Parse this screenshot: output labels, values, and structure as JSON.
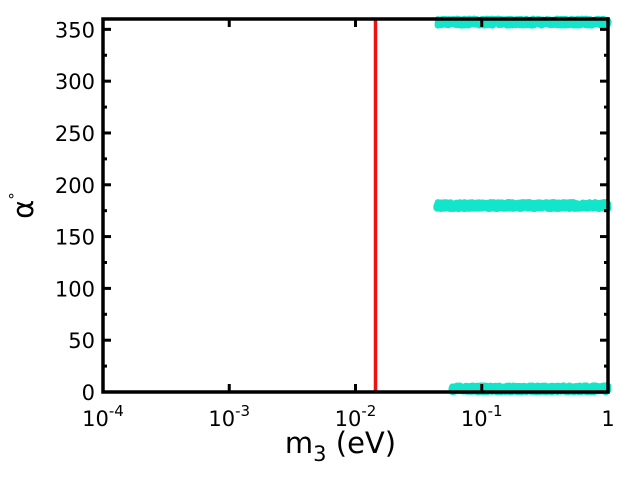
{
  "chart_data": {
    "type": "scatter",
    "title": "",
    "xlabel": {
      "base": "m",
      "sub": "3",
      "unit": " (eV)"
    },
    "ylabel": {
      "base": "α",
      "sup": "°"
    },
    "xscale": "log",
    "xlim": [
      0.0001,
      1
    ],
    "ylim": [
      0,
      360
    ],
    "x_ticks": [
      {
        "value": 0.0001,
        "base": "10",
        "exp": "-4"
      },
      {
        "value": 0.001,
        "base": "10",
        "exp": "-3"
      },
      {
        "value": 0.01,
        "base": "10",
        "exp": "-2"
      },
      {
        "value": 0.1,
        "base": "10",
        "exp": "-1"
      },
      {
        "value": 1,
        "base": "1",
        "exp": ""
      }
    ],
    "y_ticks": [
      "0",
      "50",
      "100",
      "150",
      "200",
      "250",
      "300",
      "350"
    ],
    "y_tick_values": [
      0,
      50,
      100,
      150,
      200,
      250,
      300,
      350
    ],
    "vertical_line": {
      "x": 0.0144,
      "color": "#ee1111"
    },
    "grid": false,
    "series": [
      {
        "color": "#13e5c9",
        "bands": [
          {
            "x_range": [
              0.045,
              1
            ],
            "y_center": 357,
            "spread": 3
          },
          {
            "x_range": [
              0.044,
              1
            ],
            "y_center": 180,
            "spread": 3
          },
          {
            "x_range": [
              0.058,
              1
            ],
            "y_center": 3,
            "spread": 3
          }
        ]
      }
    ]
  }
}
